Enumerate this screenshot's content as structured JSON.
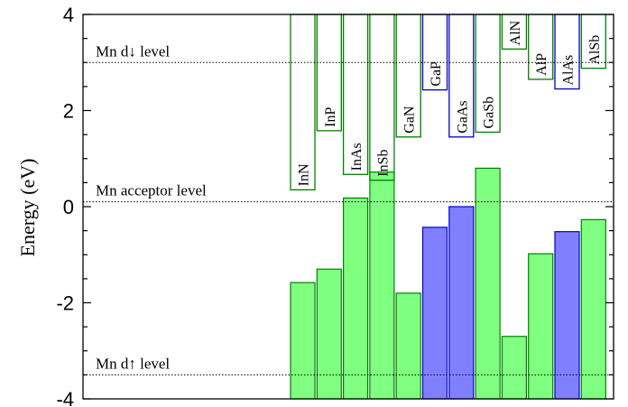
{
  "chart_data": {
    "type": "bar",
    "ylabel": "Energy (eV)",
    "ylim": [
      -4,
      4
    ],
    "y_ticks": [
      "-4",
      "-2",
      "0",
      "2",
      "4"
    ],
    "categories": [
      "InN",
      "InP",
      "InAs",
      "InSb",
      "GaN",
      "GaP",
      "GaAs",
      "GaSb",
      "AlN",
      "AlP",
      "AlAs",
      "AlSb"
    ],
    "valence_band_top": [
      -1.58,
      -1.3,
      0.18,
      0.72,
      -1.8,
      -0.43,
      0.0,
      0.8,
      -2.7,
      -0.98,
      -0.52,
      -0.27
    ],
    "conduction_band_bottom": [
      0.35,
      1.58,
      0.67,
      0.55,
      1.45,
      2.43,
      1.45,
      1.55,
      3.28,
      2.65,
      2.45,
      2.88
    ],
    "bar_colors": [
      "#80ff80",
      "#80ff80",
      "#80ff80",
      "#80ff80",
      "#80ff80",
      "#8080ff",
      "#8080ff",
      "#80ff80",
      "#80ff80",
      "#80ff80",
      "#8080ff",
      "#80ff80"
    ],
    "outline_colors": [
      "#008000",
      "#008000",
      "#008000",
      "#008000",
      "#008000",
      "#0000cc",
      "#0000cc",
      "#008000",
      "#008000",
      "#008000",
      "#0000cc",
      "#008000"
    ],
    "reference_levels": [
      {
        "label": "Mn d↓ level",
        "value": 3.0
      },
      {
        "label": "Mn acceptor level",
        "value": 0.1
      },
      {
        "label": "Mn d↑ level",
        "value": -3.5
      }
    ]
  }
}
